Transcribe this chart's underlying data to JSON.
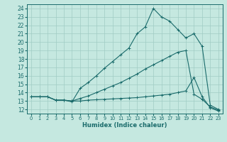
{
  "xlabel": "Humidex (Indice chaleur)",
  "bg_color": "#c5e8e0",
  "line_color": "#1a6b6b",
  "grid_color": "#a0ccc4",
  "xlim": [
    -0.5,
    23.5
  ],
  "ylim": [
    11.5,
    24.5
  ],
  "xticks": [
    0,
    1,
    2,
    3,
    4,
    5,
    6,
    7,
    8,
    9,
    10,
    11,
    12,
    13,
    14,
    15,
    16,
    17,
    18,
    19,
    20,
    21,
    22,
    23
  ],
  "yticks": [
    12,
    13,
    14,
    15,
    16,
    17,
    18,
    19,
    20,
    21,
    22,
    23,
    24
  ],
  "l1x": [
    0,
    1,
    2,
    3,
    4,
    5,
    6,
    7,
    8,
    9,
    10,
    11,
    12,
    13,
    14,
    15,
    16,
    17,
    18,
    19,
    20,
    21,
    22,
    23
  ],
  "l1y": [
    13.5,
    13.5,
    13.5,
    13.1,
    13.1,
    12.9,
    14.5,
    15.2,
    16.0,
    16.9,
    17.7,
    18.5,
    19.3,
    21.0,
    21.8,
    24.0,
    23.0,
    22.5,
    21.5,
    20.5,
    21.0,
    19.5,
    12.5,
    12.0
  ],
  "l2x": [
    0,
    1,
    2,
    3,
    4,
    5,
    6,
    7,
    8,
    9,
    10,
    11,
    12,
    13,
    14,
    15,
    16,
    17,
    18,
    19,
    20,
    21,
    22,
    23
  ],
  "l2y": [
    13.5,
    13.5,
    13.5,
    13.1,
    13.1,
    13.0,
    13.3,
    13.6,
    14.0,
    14.4,
    14.8,
    15.2,
    15.7,
    16.2,
    16.8,
    17.3,
    17.8,
    18.3,
    18.8,
    19.0,
    13.8,
    13.2,
    12.3,
    11.9
  ],
  "l3x": [
    0,
    1,
    2,
    3,
    4,
    5,
    6,
    7,
    8,
    9,
    10,
    11,
    12,
    13,
    14,
    15,
    16,
    17,
    18,
    19,
    20,
    21,
    22,
    23
  ],
  "l3y": [
    13.5,
    13.5,
    13.5,
    13.1,
    13.1,
    13.0,
    13.0,
    13.1,
    13.15,
    13.2,
    13.25,
    13.3,
    13.35,
    13.4,
    13.5,
    13.6,
    13.7,
    13.8,
    14.0,
    14.2,
    15.8,
    13.5,
    12.2,
    11.8
  ]
}
